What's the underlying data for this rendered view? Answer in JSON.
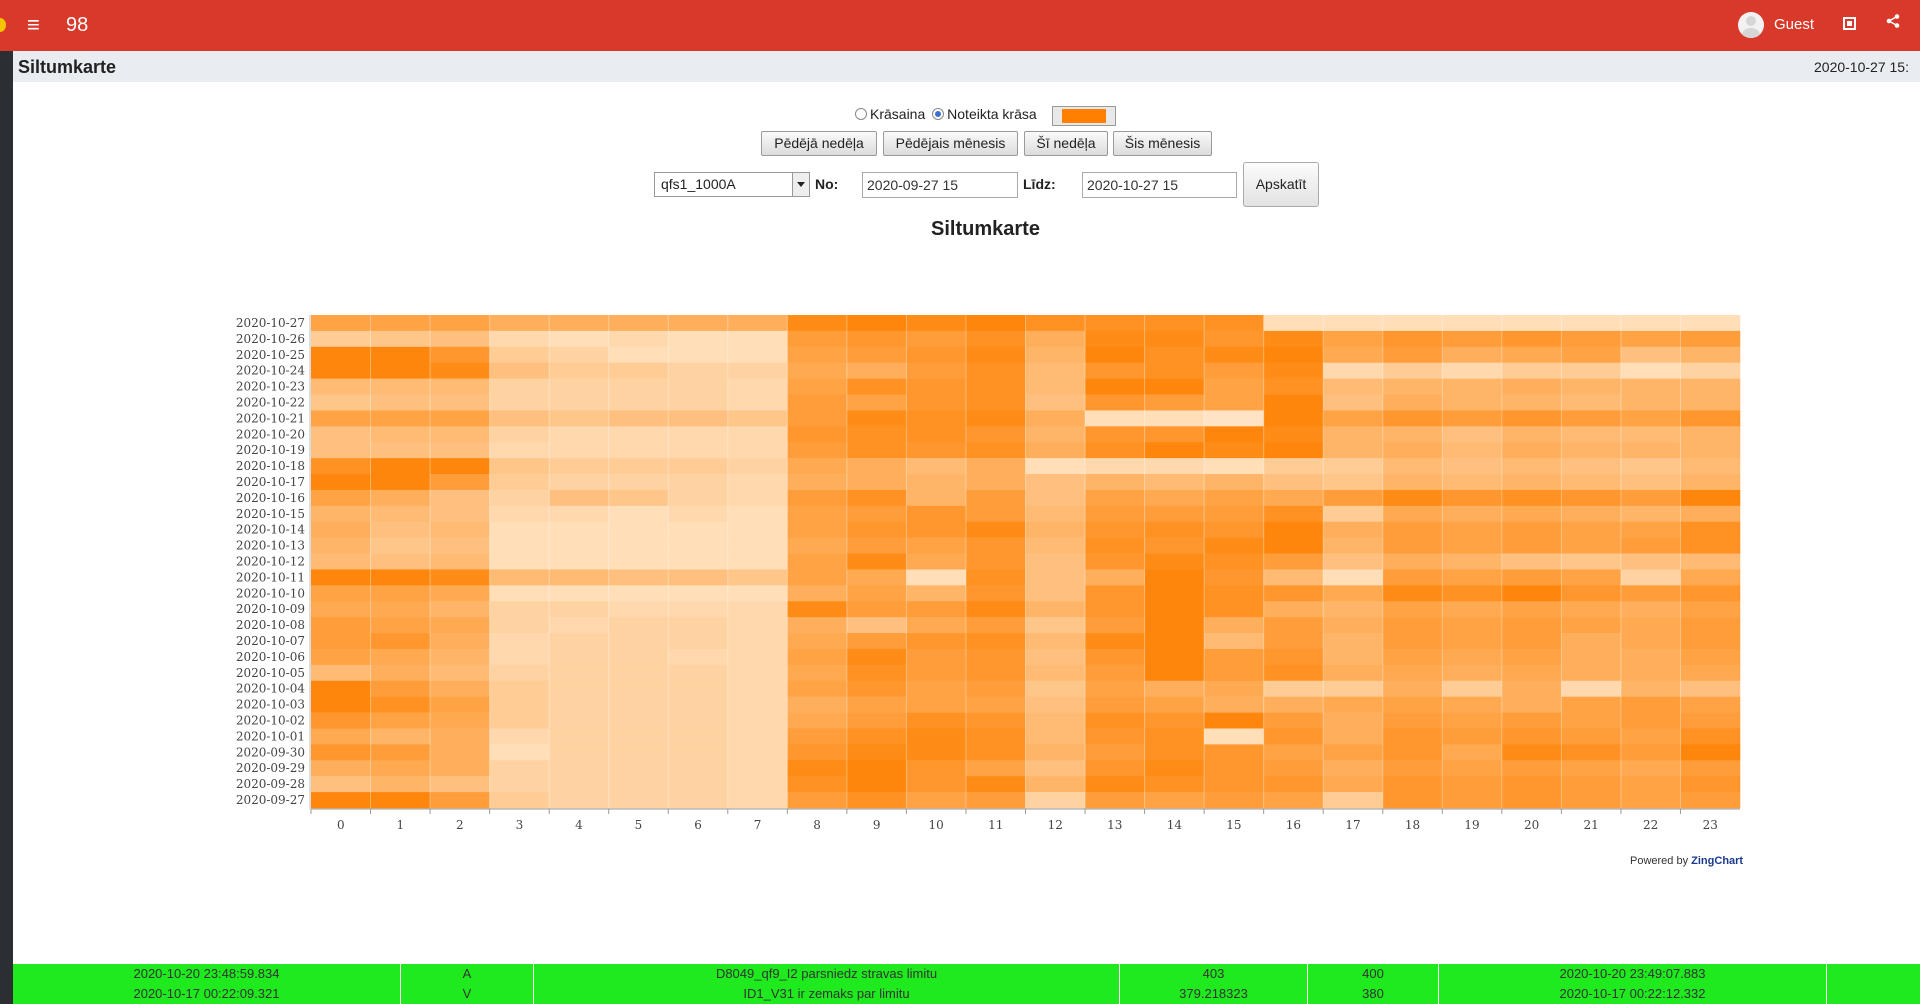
{
  "header": {
    "count": "98",
    "user": "Guest",
    "icons": [
      "menu-icon",
      "avatar-icon",
      "qr-icon",
      "share-icon"
    ]
  },
  "page": {
    "title": "Siltumkarte",
    "datetime": "2020-10-27 15:"
  },
  "colors": {
    "topbar": "#d9392a",
    "accent": "#ff8000",
    "alarm_row": "#1eea1e"
  },
  "controls": {
    "radio_colorful": "Krāsaina",
    "radio_fixed": "Noteikta krāsa",
    "selected_radio": "Noteikta krāsa",
    "swatch_color": "#ff8000",
    "btn_last_week": "Pēdējā nedēļa",
    "btn_last_month": "Pēdējais mēnesis",
    "btn_this_week": "Šī nedēļa",
    "btn_this_month": "Šis mēnesis",
    "device_select": "qfs1_1000A",
    "from_label": "No:",
    "from_value": "2020-09-27 15",
    "to_label": "Līdz:",
    "to_value": "2020-10-27 15",
    "apply_button": "Apskatīt"
  },
  "chart_data": {
    "type": "heatmap",
    "title": "Siltumkarte",
    "x_categories": [
      "0",
      "1",
      "2",
      "3",
      "4",
      "5",
      "6",
      "7",
      "8",
      "9",
      "10",
      "11",
      "12",
      "13",
      "14",
      "15",
      "16",
      "17",
      "18",
      "19",
      "20",
      "21",
      "22",
      "23"
    ],
    "y_categories": [
      "2020-10-27",
      "2020-10-26",
      "2020-10-25",
      "2020-10-24",
      "2020-10-23",
      "2020-10-22",
      "2020-10-21",
      "2020-10-20",
      "2020-10-19",
      "2020-10-18",
      "2020-10-17",
      "2020-10-16",
      "2020-10-15",
      "2020-10-14",
      "2020-10-13",
      "2020-10-12",
      "2020-10-11",
      "2020-10-10",
      "2020-10-09",
      "2020-10-08",
      "2020-10-07",
      "2020-10-06",
      "2020-10-05",
      "2020-10-04",
      "2020-10-03",
      "2020-10-02",
      "2020-10-01",
      "2020-09-30",
      "2020-09-29",
      "2020-09-28",
      "2020-09-27"
    ],
    "color": "#ff8000",
    "values": [
      [
        0.7,
        0.7,
        0.7,
        0.6,
        0.6,
        0.6,
        0.6,
        0.6,
        0.9,
        0.95,
        0.9,
        0.95,
        0.85,
        0.85,
        0.85,
        0.85,
        0.2,
        0.2,
        0.2,
        0.2,
        0.2,
        0.2,
        0.2,
        0.2
      ],
      [
        0.35,
        0.4,
        0.45,
        0.25,
        0.2,
        0.25,
        0.2,
        0.2,
        0.75,
        0.8,
        0.75,
        0.85,
        0.6,
        0.9,
        0.9,
        0.8,
        0.9,
        0.7,
        0.8,
        0.75,
        0.8,
        0.75,
        0.7,
        0.75
      ],
      [
        0.95,
        0.95,
        0.8,
        0.35,
        0.3,
        0.2,
        0.2,
        0.2,
        0.7,
        0.75,
        0.8,
        0.9,
        0.55,
        0.95,
        0.85,
        0.9,
        0.95,
        0.65,
        0.75,
        0.6,
        0.65,
        0.7,
        0.45,
        0.55
      ],
      [
        0.95,
        0.95,
        0.9,
        0.45,
        0.35,
        0.35,
        0.3,
        0.3,
        0.65,
        0.6,
        0.75,
        0.85,
        0.5,
        0.8,
        0.85,
        0.75,
        0.9,
        0.25,
        0.35,
        0.25,
        0.35,
        0.35,
        0.2,
        0.3
      ],
      [
        0.5,
        0.5,
        0.5,
        0.3,
        0.3,
        0.3,
        0.3,
        0.25,
        0.7,
        0.85,
        0.8,
        0.85,
        0.5,
        0.95,
        0.95,
        0.7,
        0.85,
        0.5,
        0.55,
        0.55,
        0.6,
        0.55,
        0.55,
        0.55
      ],
      [
        0.4,
        0.45,
        0.45,
        0.3,
        0.3,
        0.3,
        0.3,
        0.25,
        0.75,
        0.7,
        0.8,
        0.85,
        0.45,
        0.8,
        0.75,
        0.7,
        0.95,
        0.45,
        0.6,
        0.55,
        0.55,
        0.5,
        0.55,
        0.55
      ],
      [
        0.7,
        0.7,
        0.7,
        0.45,
        0.4,
        0.45,
        0.45,
        0.4,
        0.75,
        0.9,
        0.85,
        0.9,
        0.6,
        0.2,
        0.2,
        0.15,
        0.95,
        0.7,
        0.8,
        0.75,
        0.8,
        0.75,
        0.7,
        0.8
      ],
      [
        0.45,
        0.5,
        0.5,
        0.3,
        0.25,
        0.25,
        0.25,
        0.25,
        0.8,
        0.85,
        0.85,
        0.8,
        0.55,
        0.8,
        0.8,
        0.95,
        0.9,
        0.55,
        0.55,
        0.45,
        0.55,
        0.5,
        0.5,
        0.55
      ],
      [
        0.45,
        0.45,
        0.45,
        0.25,
        0.25,
        0.25,
        0.25,
        0.25,
        0.75,
        0.85,
        0.8,
        0.85,
        0.6,
        0.85,
        0.95,
        0.9,
        0.95,
        0.55,
        0.6,
        0.5,
        0.6,
        0.55,
        0.55,
        0.55
      ],
      [
        0.85,
        0.95,
        0.95,
        0.4,
        0.35,
        0.35,
        0.35,
        0.3,
        0.65,
        0.6,
        0.5,
        0.6,
        0.2,
        0.25,
        0.25,
        0.2,
        0.35,
        0.35,
        0.5,
        0.45,
        0.5,
        0.45,
        0.4,
        0.5
      ],
      [
        0.95,
        0.95,
        0.75,
        0.35,
        0.3,
        0.3,
        0.3,
        0.25,
        0.6,
        0.6,
        0.55,
        0.6,
        0.45,
        0.55,
        0.5,
        0.55,
        0.45,
        0.4,
        0.55,
        0.5,
        0.55,
        0.5,
        0.45,
        0.55
      ],
      [
        0.7,
        0.6,
        0.45,
        0.3,
        0.45,
        0.4,
        0.3,
        0.25,
        0.75,
        0.85,
        0.55,
        0.75,
        0.45,
        0.7,
        0.65,
        0.7,
        0.65,
        0.75,
        0.9,
        0.8,
        0.85,
        0.8,
        0.75,
        0.95
      ],
      [
        0.55,
        0.5,
        0.45,
        0.25,
        0.25,
        0.2,
        0.25,
        0.2,
        0.7,
        0.75,
        0.8,
        0.75,
        0.5,
        0.75,
        0.75,
        0.75,
        0.85,
        0.35,
        0.65,
        0.6,
        0.65,
        0.6,
        0.55,
        0.6
      ],
      [
        0.6,
        0.45,
        0.5,
        0.2,
        0.2,
        0.2,
        0.2,
        0.2,
        0.7,
        0.8,
        0.8,
        0.9,
        0.55,
        0.8,
        0.85,
        0.8,
        0.95,
        0.6,
        0.75,
        0.7,
        0.75,
        0.7,
        0.7,
        0.85
      ],
      [
        0.55,
        0.4,
        0.45,
        0.2,
        0.2,
        0.2,
        0.2,
        0.2,
        0.65,
        0.75,
        0.7,
        0.8,
        0.5,
        0.85,
        0.8,
        0.9,
        0.95,
        0.55,
        0.75,
        0.7,
        0.75,
        0.7,
        0.75,
        0.85
      ],
      [
        0.5,
        0.45,
        0.5,
        0.2,
        0.2,
        0.2,
        0.2,
        0.2,
        0.7,
        0.9,
        0.65,
        0.8,
        0.45,
        0.8,
        0.9,
        0.85,
        0.75,
        0.45,
        0.6,
        0.55,
        0.45,
        0.4,
        0.45,
        0.5
      ],
      [
        0.95,
        0.95,
        0.9,
        0.5,
        0.5,
        0.45,
        0.45,
        0.4,
        0.7,
        0.65,
        0.2,
        0.85,
        0.45,
        0.6,
        0.95,
        0.8,
        0.5,
        0.2,
        0.75,
        0.7,
        0.75,
        0.7,
        0.3,
        0.65
      ],
      [
        0.7,
        0.7,
        0.65,
        0.2,
        0.2,
        0.2,
        0.2,
        0.2,
        0.6,
        0.7,
        0.55,
        0.8,
        0.45,
        0.8,
        0.95,
        0.85,
        0.8,
        0.65,
        0.9,
        0.85,
        0.95,
        0.8,
        0.75,
        0.8
      ],
      [
        0.65,
        0.65,
        0.55,
        0.3,
        0.3,
        0.25,
        0.25,
        0.25,
        0.9,
        0.75,
        0.75,
        0.9,
        0.55,
        0.8,
        0.95,
        0.85,
        0.6,
        0.55,
        0.7,
        0.65,
        0.7,
        0.65,
        0.6,
        0.7
      ],
      [
        0.75,
        0.7,
        0.65,
        0.3,
        0.25,
        0.3,
        0.3,
        0.25,
        0.6,
        0.45,
        0.65,
        0.75,
        0.4,
        0.75,
        0.95,
        0.6,
        0.75,
        0.6,
        0.75,
        0.7,
        0.75,
        0.7,
        0.65,
        0.75
      ],
      [
        0.75,
        0.8,
        0.6,
        0.25,
        0.3,
        0.3,
        0.3,
        0.25,
        0.65,
        0.75,
        0.8,
        0.85,
        0.5,
        0.9,
        0.95,
        0.5,
        0.75,
        0.55,
        0.75,
        0.7,
        0.75,
        0.6,
        0.65,
        0.75
      ],
      [
        0.7,
        0.65,
        0.55,
        0.25,
        0.3,
        0.3,
        0.25,
        0.25,
        0.7,
        0.9,
        0.75,
        0.8,
        0.45,
        0.8,
        0.95,
        0.75,
        0.8,
        0.55,
        0.7,
        0.65,
        0.7,
        0.6,
        0.6,
        0.7
      ],
      [
        0.5,
        0.6,
        0.5,
        0.3,
        0.3,
        0.3,
        0.3,
        0.25,
        0.65,
        0.85,
        0.75,
        0.8,
        0.5,
        0.75,
        0.95,
        0.75,
        0.85,
        0.6,
        0.65,
        0.6,
        0.65,
        0.6,
        0.6,
        0.65
      ],
      [
        0.95,
        0.75,
        0.6,
        0.35,
        0.3,
        0.3,
        0.3,
        0.25,
        0.7,
        0.8,
        0.7,
        0.75,
        0.4,
        0.7,
        0.6,
        0.65,
        0.35,
        0.35,
        0.6,
        0.35,
        0.6,
        0.25,
        0.55,
        0.45
      ],
      [
        0.95,
        0.85,
        0.7,
        0.35,
        0.3,
        0.3,
        0.3,
        0.25,
        0.6,
        0.7,
        0.7,
        0.7,
        0.45,
        0.75,
        0.7,
        0.6,
        0.6,
        0.65,
        0.7,
        0.65,
        0.6,
        0.7,
        0.75,
        0.7
      ],
      [
        0.8,
        0.7,
        0.65,
        0.35,
        0.3,
        0.3,
        0.3,
        0.25,
        0.65,
        0.75,
        0.85,
        0.8,
        0.5,
        0.85,
        0.8,
        0.95,
        0.75,
        0.6,
        0.75,
        0.7,
        0.75,
        0.7,
        0.75,
        0.75
      ],
      [
        0.65,
        0.55,
        0.6,
        0.25,
        0.3,
        0.3,
        0.3,
        0.25,
        0.75,
        0.85,
        0.9,
        0.85,
        0.5,
        0.8,
        0.85,
        0.2,
        0.8,
        0.6,
        0.8,
        0.75,
        0.8,
        0.75,
        0.7,
        0.85
      ],
      [
        0.8,
        0.75,
        0.6,
        0.2,
        0.3,
        0.3,
        0.3,
        0.25,
        0.8,
        0.9,
        0.9,
        0.85,
        0.55,
        0.75,
        0.85,
        0.8,
        0.7,
        0.7,
        0.8,
        0.65,
        0.9,
        0.85,
        0.75,
        0.95
      ],
      [
        0.6,
        0.65,
        0.6,
        0.3,
        0.3,
        0.3,
        0.3,
        0.25,
        0.9,
        0.95,
        0.8,
        0.7,
        0.45,
        0.8,
        0.9,
        0.8,
        0.75,
        0.6,
        0.75,
        0.7,
        0.75,
        0.7,
        0.65,
        0.75
      ],
      [
        0.45,
        0.55,
        0.45,
        0.3,
        0.3,
        0.3,
        0.3,
        0.25,
        0.85,
        0.95,
        0.8,
        0.9,
        0.55,
        0.9,
        0.85,
        0.8,
        0.8,
        0.65,
        0.8,
        0.75,
        0.8,
        0.75,
        0.7,
        0.8
      ],
      [
        0.95,
        0.95,
        0.75,
        0.35,
        0.3,
        0.3,
        0.3,
        0.25,
        0.75,
        0.85,
        0.7,
        0.75,
        0.3,
        0.75,
        0.7,
        0.75,
        0.7,
        0.35,
        0.8,
        0.75,
        0.8,
        0.75,
        0.7,
        0.75
      ]
    ]
  },
  "footer": {
    "powered_by": "Powered by",
    "brand": "ZingChart"
  },
  "alarms": [
    {
      "start": "2020-10-20 23:48:59.834",
      "type": "A",
      "message": "D8049_qf9_I2 parsniedz stravas limitu",
      "value": "403",
      "limit": "400",
      "end": "2020-10-20 23:49:07.883"
    },
    {
      "start": "2020-10-17 00:22:09.321",
      "type": "V",
      "message": "ID1_V31 ir zemaks par limitu",
      "value": "379.218323",
      "limit": "380",
      "end": "2020-10-17 00:22:12.332"
    }
  ]
}
